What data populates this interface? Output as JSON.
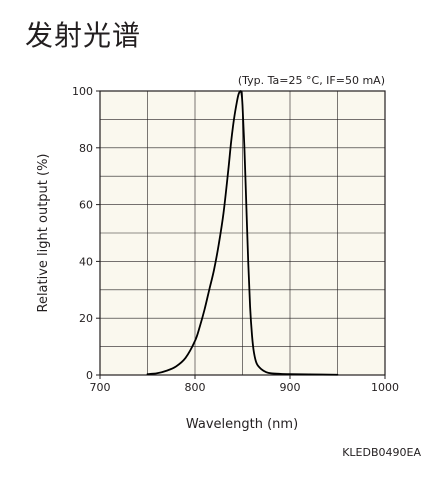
{
  "page": {
    "title": "发射光谱",
    "doc_code": "KLEDB0490EA"
  },
  "chart_data": {
    "type": "line",
    "title": "",
    "condition_note": "(Typ. Ta=25 °C, IF=50 mA)",
    "xlabel": "Wavelength (nm)",
    "ylabel": "Relative light output (%)",
    "xlim": [
      700,
      1000
    ],
    "ylim": [
      0,
      100
    ],
    "x_ticks": [
      700,
      800,
      900,
      1000
    ],
    "y_ticks": [
      0,
      20,
      40,
      60,
      80,
      100
    ],
    "x_minor_step": 50,
    "y_minor_step": 10,
    "grid": true,
    "legend": "none",
    "line_color": "#000000",
    "background_color": "#faf8ee",
    "series": [
      {
        "x": [
          750,
          760,
          770,
          780,
          790,
          800,
          805,
          810,
          815,
          820,
          825,
          830,
          835,
          838,
          841,
          844,
          846,
          848,
          849,
          850,
          852,
          854,
          856,
          858,
          860,
          862,
          865,
          870,
          875,
          880,
          890,
          900,
          920,
          950
        ],
        "y": [
          0.3,
          0.6,
          1.5,
          3,
          6,
          12,
          17,
          23,
          30,
          37,
          46,
          57,
          72,
          82,
          90,
          96,
          99,
          100,
          99,
          95,
          80,
          60,
          40,
          24,
          14,
          8,
          4,
          2,
          1,
          0.6,
          0.4,
          0.3,
          0.2,
          0.1
        ]
      }
    ]
  }
}
